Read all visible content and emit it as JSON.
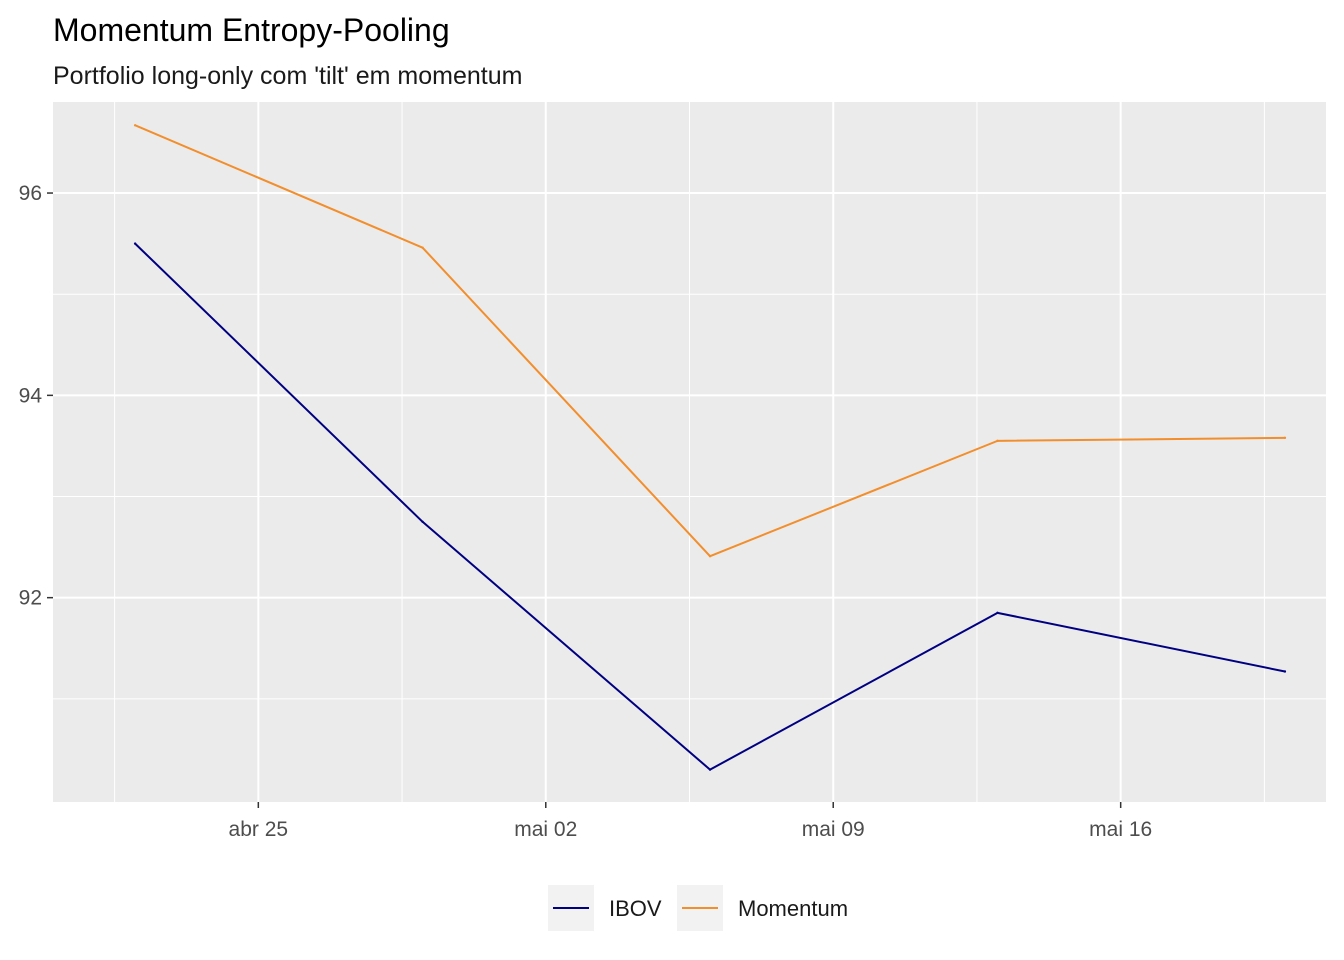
{
  "chart_data": {
    "type": "line",
    "title": "Momentum Entropy-Pooling",
    "subtitle": "Portfolio long-only com 'tilt' em momentum",
    "xlabel": "",
    "ylabel": "",
    "x": [
      "2022-04-22",
      "2022-04-29",
      "2022-05-06",
      "2022-05-13",
      "2022-05-20"
    ],
    "x_ticks": [
      {
        "date": "2022-04-25",
        "label": "abr 25"
      },
      {
        "date": "2022-05-02",
        "label": "mai 02"
      },
      {
        "date": "2022-05-09",
        "label": "mai 09"
      },
      {
        "date": "2022-05-16",
        "label": "mai 16"
      }
    ],
    "y_ticks": [
      92,
      94,
      96
    ],
    "xlim": [
      "2022-04-20",
      "2022-05-21"
    ],
    "ylim": [
      89.98,
      96.9
    ],
    "grid": true,
    "legend_position": "bottom",
    "series": [
      {
        "name": "IBOV",
        "color": "#000080",
        "values": [
          95.5,
          92.75,
          90.3,
          91.85,
          91.27
        ]
      },
      {
        "name": "Momentum",
        "color": "#F28E2B",
        "values": [
          96.67,
          95.46,
          92.41,
          93.55,
          93.58
        ]
      }
    ]
  }
}
